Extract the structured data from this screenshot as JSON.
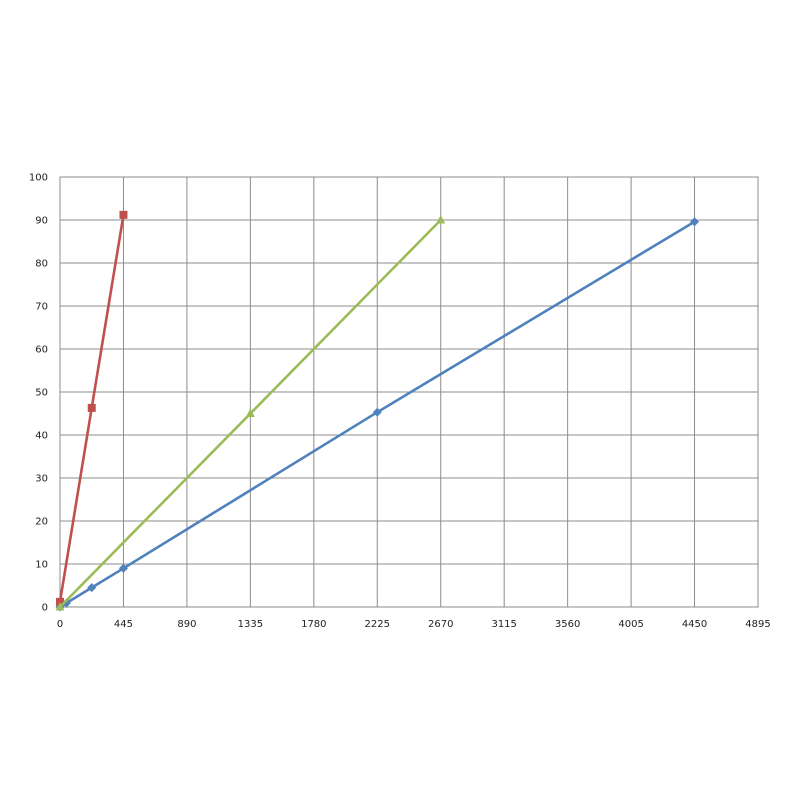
{
  "chart_data": {
    "type": "line",
    "title": "",
    "xlabel": "",
    "ylabel": "",
    "xlim": [
      0,
      4895
    ],
    "ylim": [
      0,
      100
    ],
    "x_ticks": [
      "0",
      "445",
      "890",
      "1335",
      "1780",
      "2225",
      "2670",
      "3115",
      "3560",
      "4005",
      "4450",
      "4895"
    ],
    "y_ticks": [
      "0",
      "10",
      "20",
      "30",
      "40",
      "50",
      "60",
      "70",
      "80",
      "90",
      "100"
    ],
    "grid": true,
    "legend": "none",
    "series": [
      {
        "color": "#4f81bd",
        "marker": "diamond",
        "points": [
          [
            0,
            0
          ],
          [
            44.5,
            0.9
          ],
          [
            222.5,
            4.5
          ],
          [
            445,
            9
          ],
          [
            2225,
            45.3
          ],
          [
            4450,
            89.6
          ]
        ]
      },
      {
        "color": "#c0504d",
        "marker": "square",
        "points": [
          [
            0,
            1.2
          ],
          [
            222.5,
            46.3
          ],
          [
            445,
            91.2
          ]
        ]
      },
      {
        "color": "#9bbb59",
        "marker": "triangle",
        "points": [
          [
            0,
            0
          ],
          [
            1335,
            45
          ],
          [
            2670,
            90
          ]
        ]
      }
    ]
  }
}
